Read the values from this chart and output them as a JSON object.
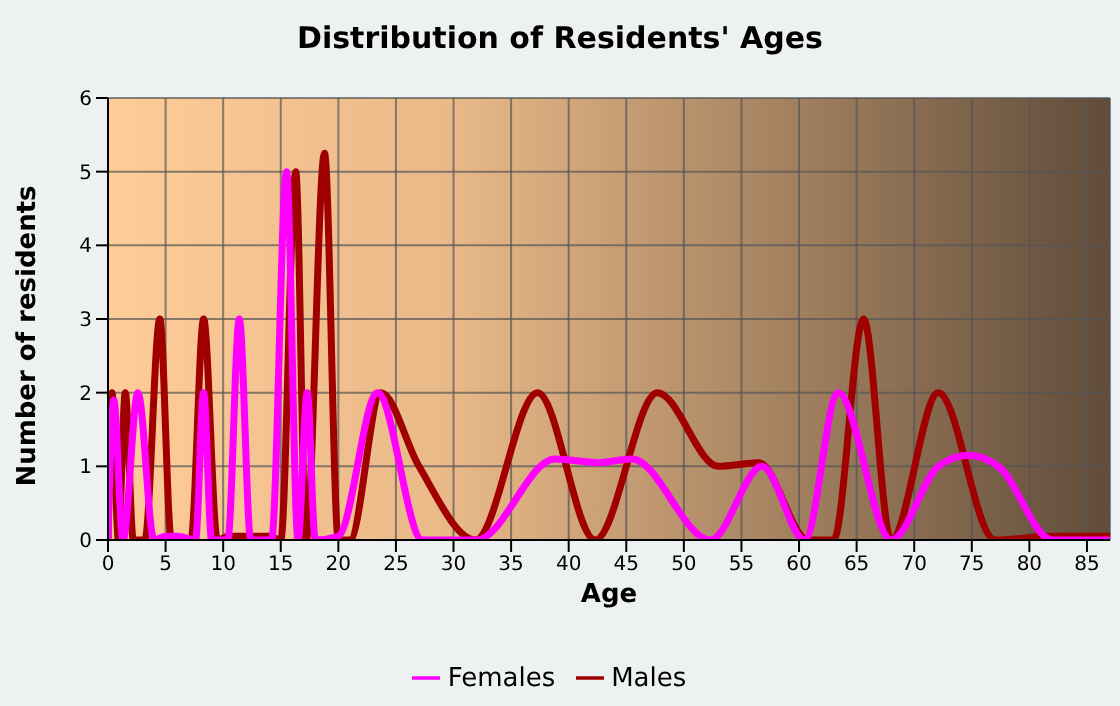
{
  "chart_data": {
    "type": "line",
    "title": "Distribution of Residents' Ages",
    "xlabel": "Age",
    "ylabel": "Number of residents",
    "xlim": [
      0,
      87
    ],
    "xticks": [
      0,
      5,
      10,
      15,
      20,
      25,
      30,
      35,
      40,
      45,
      50,
      55,
      60,
      65,
      70,
      75,
      80,
      85
    ],
    "ylim": [
      0,
      6
    ],
    "yticks": [
      0,
      1,
      2,
      3,
      4,
      5,
      6
    ],
    "grid": true,
    "legend": "bottom",
    "marker": "none",
    "line_style": "solid",
    "series": [
      {
        "name": "Males",
        "color": "#a00000",
        "x": [
          0,
          0.35,
          0.9,
          1.5,
          2.2,
          3.2,
          4.5,
          5.5,
          6.5,
          7.2,
          8.3,
          9.5,
          10.5,
          12,
          14,
          15,
          16.3,
          17.2,
          18.8,
          20,
          21,
          23.7,
          27,
          31.9,
          37.3,
          42.3,
          47.7,
          53,
          56.5,
          60.8,
          63,
          65.6,
          68,
          72.1,
          77,
          82,
          87
        ],
        "values": [
          0,
          2,
          0,
          2,
          0,
          0,
          3,
          0,
          0,
          0,
          3,
          0,
          0.05,
          0.05,
          0.05,
          0,
          5,
          0,
          5.25,
          0,
          0,
          2,
          1,
          0,
          2,
          0,
          2,
          1,
          1.05,
          0,
          0,
          3,
          0,
          2,
          0,
          0.05,
          0.05
        ]
      },
      {
        "name": "Females",
        "color": "#ff00ff",
        "x": [
          0,
          0.5,
          1.3,
          2.6,
          4,
          5,
          6,
          7.6,
          8.3,
          9,
          10.4,
          11.4,
          12.4,
          14.2,
          15.5,
          16.5,
          17.3,
          18,
          20,
          23.4,
          27.3,
          32,
          38.8,
          42.6,
          45.5,
          52.3,
          56.8,
          60.5,
          63.4,
          68,
          72.1,
          74.7,
          77.3,
          82,
          87
        ],
        "values": [
          0,
          1.9,
          0,
          2,
          0,
          0.05,
          0.05,
          0,
          2,
          0,
          0,
          3,
          0,
          0,
          5,
          0,
          2,
          0,
          0.05,
          2,
          0,
          0,
          1.1,
          1.05,
          1.1,
          0,
          1,
          0,
          2,
          0,
          1,
          1.15,
          1,
          0,
          0
        ]
      }
    ]
  }
}
